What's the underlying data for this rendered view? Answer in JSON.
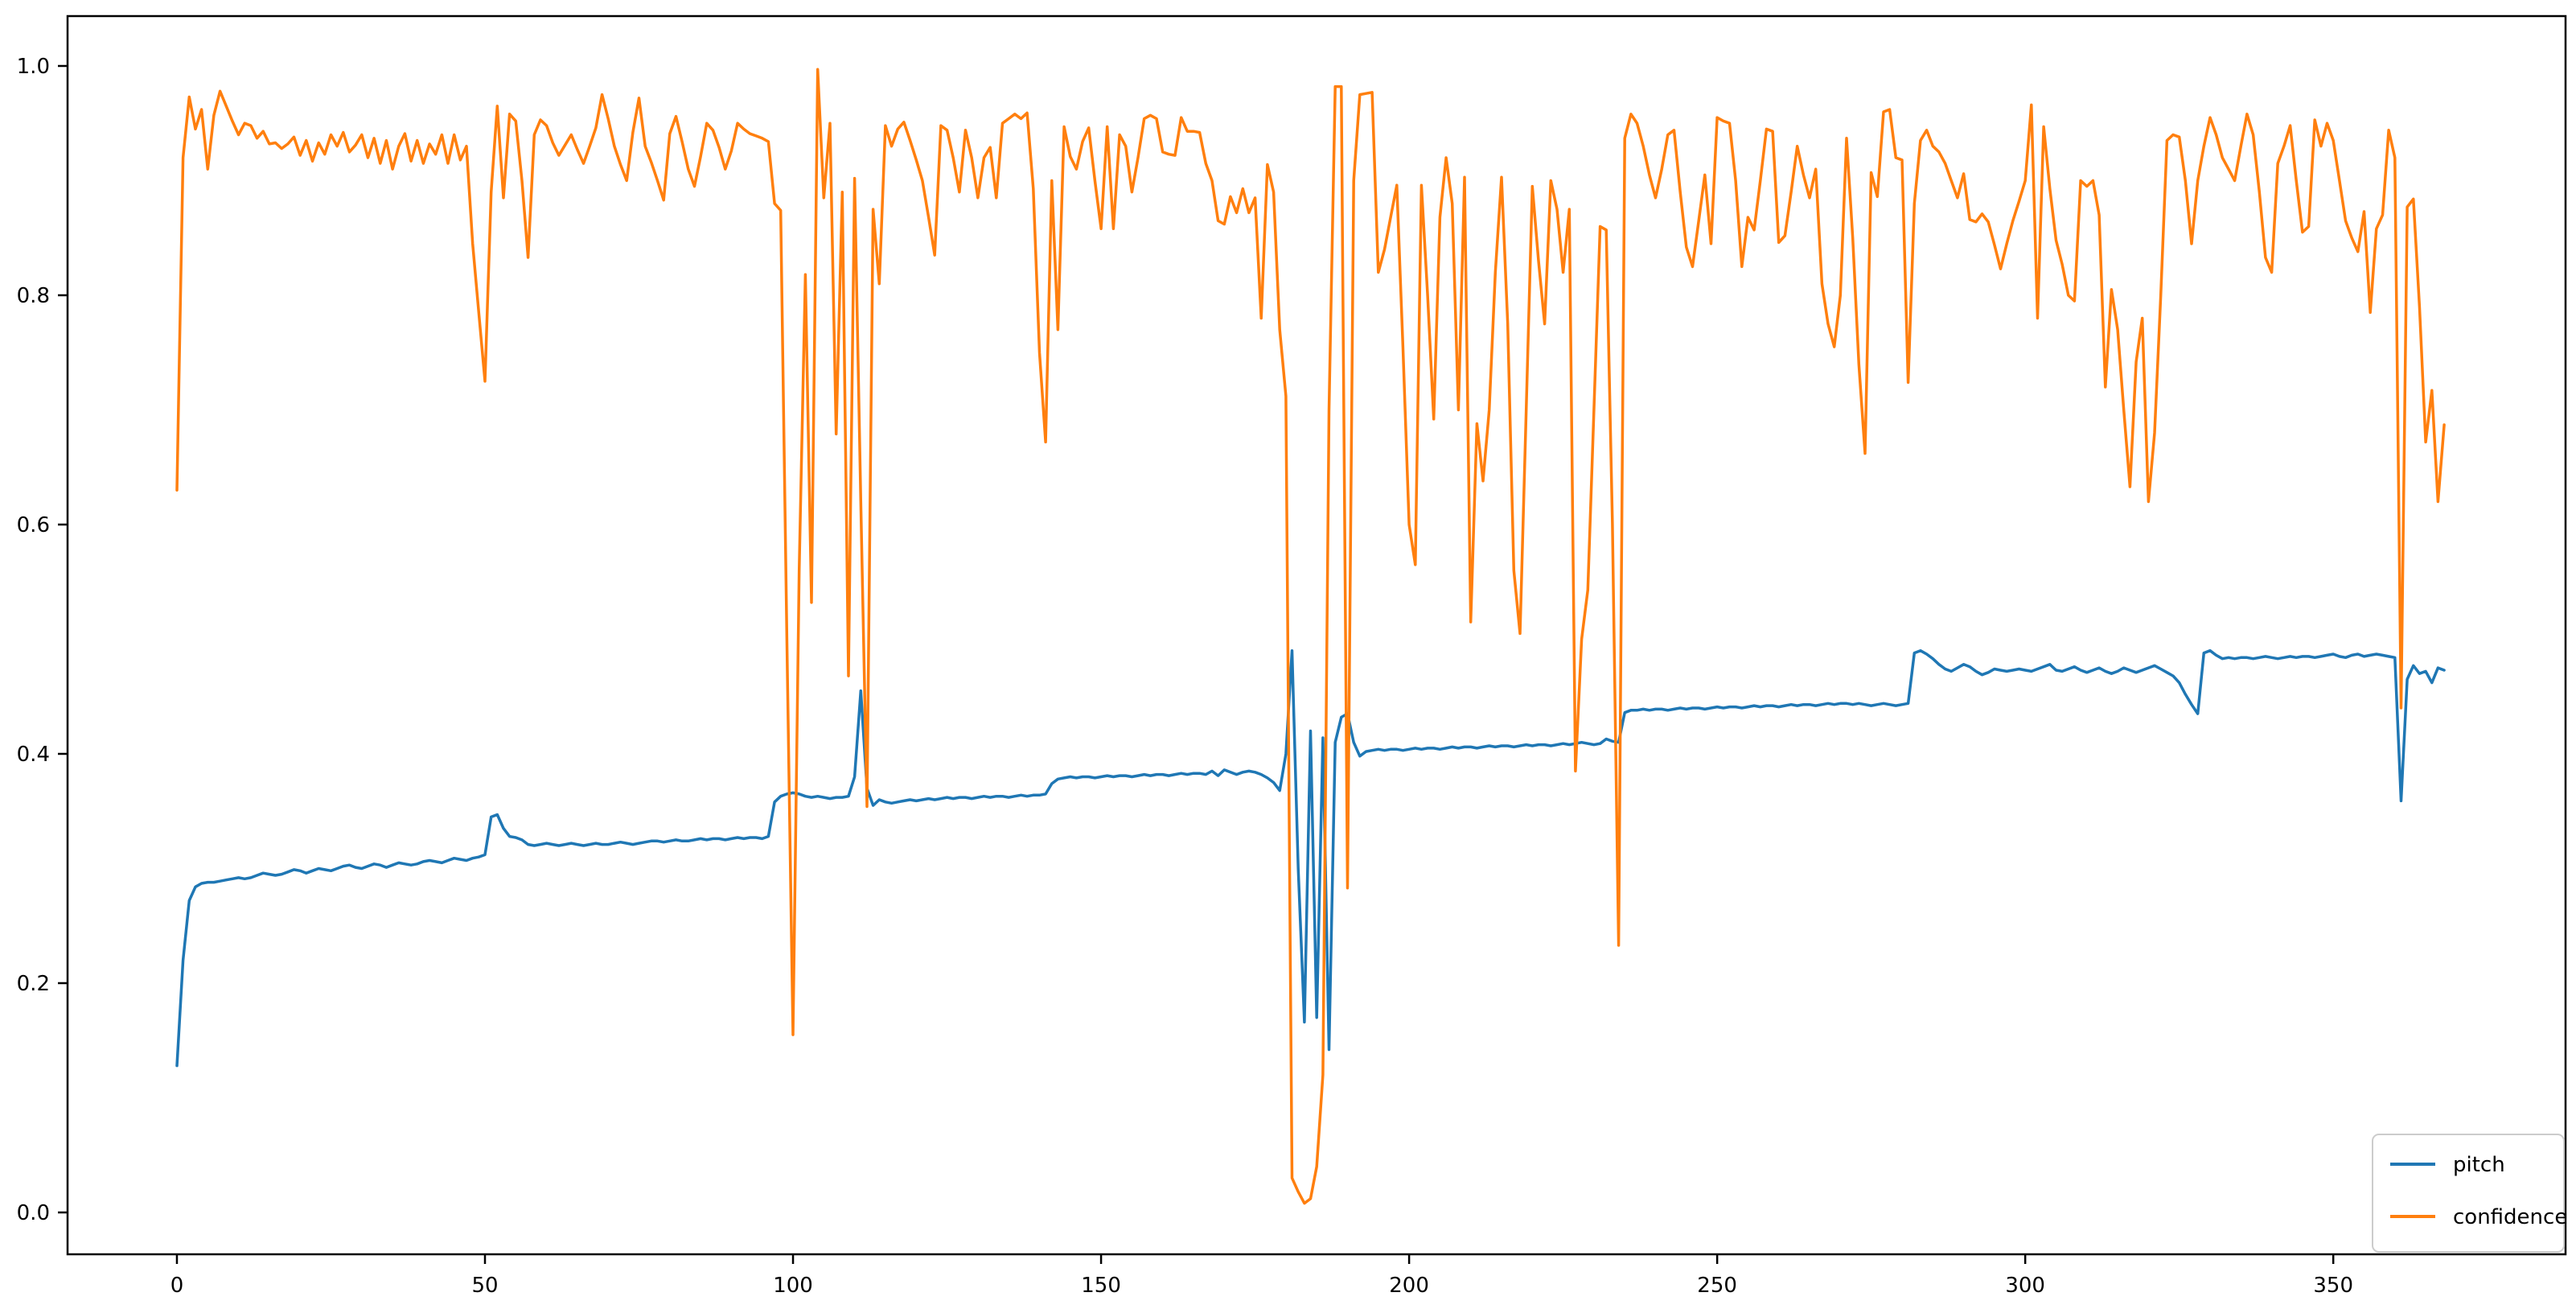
{
  "figure": {
    "background": "#ffffff",
    "frame_color": "#000000",
    "tick_color": "#000000",
    "legend_border_color": "#cccccc"
  },
  "legend": {
    "items": [
      {
        "label": "pitch",
        "color": "#1f77b4"
      },
      {
        "label": "confidence",
        "color": "#ff7f0e"
      }
    ]
  },
  "chart_data": {
    "type": "line",
    "title": "",
    "xlabel": "",
    "ylabel": "",
    "grid": false,
    "legend_position": "lower right",
    "x_start": 0,
    "x_step": 1,
    "xlim": [
      -17.75,
      387.7
    ],
    "ylim": [
      -0.0365,
      1.0435
    ],
    "xticks": [
      0,
      50,
      100,
      150,
      200,
      250,
      300,
      350
    ],
    "yticks": [
      0.0,
      0.2,
      0.4,
      0.6,
      0.8,
      1.0
    ],
    "ytick_labels": [
      "0.0",
      "0.2",
      "0.4",
      "0.6",
      "0.8",
      "1.0"
    ],
    "series": [
      {
        "name": "pitch",
        "color": "#1f77b4",
        "values": [
          0.128,
          0.22,
          0.272,
          0.284,
          0.287,
          0.288,
          0.288,
          0.289,
          0.29,
          0.291,
          0.292,
          0.291,
          0.292,
          0.294,
          0.296,
          0.295,
          0.294,
          0.295,
          0.297,
          0.299,
          0.298,
          0.296,
          0.298,
          0.3,
          0.299,
          0.298,
          0.3,
          0.302,
          0.303,
          0.301,
          0.3,
          0.302,
          0.304,
          0.303,
          0.301,
          0.303,
          0.305,
          0.304,
          0.303,
          0.304,
          0.306,
          0.307,
          0.306,
          0.305,
          0.307,
          0.309,
          0.308,
          0.307,
          0.309,
          0.31,
          0.312,
          0.345,
          0.347,
          0.335,
          0.328,
          0.327,
          0.325,
          0.321,
          0.32,
          0.321,
          0.322,
          0.321,
          0.32,
          0.321,
          0.322,
          0.321,
          0.32,
          0.321,
          0.322,
          0.321,
          0.321,
          0.322,
          0.323,
          0.322,
          0.321,
          0.322,
          0.323,
          0.324,
          0.324,
          0.323,
          0.324,
          0.325,
          0.324,
          0.324,
          0.325,
          0.326,
          0.325,
          0.326,
          0.326,
          0.325,
          0.326,
          0.327,
          0.326,
          0.327,
          0.327,
          0.326,
          0.328,
          0.358,
          0.363,
          0.365,
          0.366,
          0.365,
          0.363,
          0.362,
          0.363,
          0.362,
          0.361,
          0.362,
          0.362,
          0.363,
          0.38,
          0.455,
          0.37,
          0.355,
          0.36,
          0.358,
          0.357,
          0.358,
          0.359,
          0.36,
          0.359,
          0.36,
          0.361,
          0.36,
          0.361,
          0.362,
          0.361,
          0.362,
          0.362,
          0.361,
          0.362,
          0.363,
          0.362,
          0.363,
          0.363,
          0.362,
          0.363,
          0.364,
          0.363,
          0.364,
          0.364,
          0.365,
          0.374,
          0.378,
          0.379,
          0.38,
          0.379,
          0.38,
          0.38,
          0.379,
          0.38,
          0.381,
          0.38,
          0.381,
          0.381,
          0.38,
          0.381,
          0.382,
          0.381,
          0.382,
          0.382,
          0.381,
          0.382,
          0.383,
          0.382,
          0.383,
          0.383,
          0.382,
          0.385,
          0.381,
          0.386,
          0.384,
          0.382,
          0.384,
          0.385,
          0.384,
          0.382,
          0.379,
          0.375,
          0.368,
          0.4,
          0.49,
          0.3,
          0.166,
          0.42,
          0.17,
          0.414,
          0.142,
          0.41,
          0.432,
          0.435,
          0.41,
          0.398,
          0.402,
          0.403,
          0.404,
          0.403,
          0.404,
          0.404,
          0.403,
          0.404,
          0.405,
          0.404,
          0.405,
          0.405,
          0.404,
          0.405,
          0.406,
          0.405,
          0.406,
          0.406,
          0.405,
          0.406,
          0.407,
          0.406,
          0.407,
          0.407,
          0.406,
          0.407,
          0.408,
          0.407,
          0.408,
          0.408,
          0.407,
          0.408,
          0.409,
          0.408,
          0.409,
          0.41,
          0.409,
          0.408,
          0.409,
          0.413,
          0.411,
          0.41,
          0.436,
          0.438,
          0.438,
          0.439,
          0.438,
          0.439,
          0.439,
          0.438,
          0.439,
          0.44,
          0.439,
          0.44,
          0.44,
          0.439,
          0.44,
          0.441,
          0.44,
          0.441,
          0.441,
          0.44,
          0.441,
          0.442,
          0.441,
          0.442,
          0.442,
          0.441,
          0.442,
          0.443,
          0.442,
          0.443,
          0.443,
          0.442,
          0.443,
          0.444,
          0.443,
          0.444,
          0.444,
          0.443,
          0.444,
          0.443,
          0.442,
          0.443,
          0.444,
          0.443,
          0.442,
          0.443,
          0.444,
          0.488,
          0.49,
          0.487,
          0.483,
          0.478,
          0.474,
          0.472,
          0.475,
          0.478,
          0.476,
          0.472,
          0.469,
          0.471,
          0.474,
          0.473,
          0.472,
          0.473,
          0.474,
          0.473,
          0.472,
          0.474,
          0.476,
          0.478,
          0.473,
          0.472,
          0.474,
          0.476,
          0.473,
          0.471,
          0.473,
          0.475,
          0.472,
          0.47,
          0.472,
          0.475,
          0.473,
          0.471,
          0.473,
          0.475,
          0.477,
          0.474,
          0.471,
          0.468,
          0.462,
          0.452,
          0.443,
          0.435,
          0.488,
          0.49,
          0.486,
          0.483,
          0.484,
          0.483,
          0.484,
          0.484,
          0.483,
          0.484,
          0.485,
          0.484,
          0.483,
          0.484,
          0.485,
          0.484,
          0.485,
          0.485,
          0.484,
          0.485,
          0.486,
          0.487,
          0.485,
          0.484,
          0.486,
          0.487,
          0.485,
          0.486,
          0.487,
          0.486,
          0.485,
          0.484,
          0.359,
          0.465,
          0.477,
          0.47,
          0.472,
          0.462,
          0.475,
          0.473
        ]
      },
      {
        "name": "confidence",
        "color": "#ff7f0e",
        "values": [
          0.63,
          0.92,
          0.973,
          0.945,
          0.962,
          0.91,
          0.957,
          0.978,
          0.965,
          0.952,
          0.94,
          0.95,
          0.948,
          0.937,
          0.943,
          0.932,
          0.933,
          0.928,
          0.932,
          0.938,
          0.922,
          0.935,
          0.917,
          0.933,
          0.923,
          0.94,
          0.93,
          0.942,
          0.925,
          0.931,
          0.94,
          0.92,
          0.937,
          0.915,
          0.935,
          0.91,
          0.93,
          0.941,
          0.917,
          0.935,
          0.915,
          0.932,
          0.923,
          0.94,
          0.915,
          0.94,
          0.918,
          0.93,
          0.845,
          0.785,
          0.725,
          0.89,
          0.965,
          0.885,
          0.958,
          0.952,
          0.9,
          0.833,
          0.94,
          0.953,
          0.948,
          0.933,
          0.922,
          0.931,
          0.94,
          0.927,
          0.915,
          0.93,
          0.946,
          0.975,
          0.954,
          0.93,
          0.914,
          0.9,
          0.942,
          0.972,
          0.93,
          0.916,
          0.9,
          0.883,
          0.941,
          0.956,
          0.934,
          0.91,
          0.895,
          0.921,
          0.95,
          0.944,
          0.929,
          0.91,
          0.926,
          0.95,
          0.945,
          0.941,
          0.939,
          0.937,
          0.934,
          0.88,
          0.874,
          0.5,
          0.155,
          0.56,
          0.818,
          0.532,
          0.997,
          0.885,
          0.95,
          0.679,
          0.89,
          0.468,
          0.902,
          0.62,
          0.354,
          0.875,
          0.81,
          0.948,
          0.93,
          0.945,
          0.951,
          0.935,
          0.918,
          0.9,
          0.868,
          0.835,
          0.948,
          0.944,
          0.92,
          0.89,
          0.944,
          0.92,
          0.885,
          0.92,
          0.929,
          0.885,
          0.95,
          0.954,
          0.958,
          0.954,
          0.959,
          0.893,
          0.75,
          0.672,
          0.9,
          0.77,
          0.947,
          0.921,
          0.91,
          0.934,
          0.946,
          0.9,
          0.858,
          0.947,
          0.858,
          0.94,
          0.93,
          0.89,
          0.92,
          0.954,
          0.957,
          0.954,
          0.925,
          0.923,
          0.922,
          0.955,
          0.943,
          0.943,
          0.942,
          0.915,
          0.9,
          0.865,
          0.862,
          0.886,
          0.872,
          0.893,
          0.872,
          0.885,
          0.78,
          0.914,
          0.89,
          0.77,
          0.712,
          0.03,
          0.018,
          0.008,
          0.012,
          0.04,
          0.12,
          0.7,
          0.982,
          0.982,
          0.283,
          0.9,
          0.975,
          0.976,
          0.977,
          0.82,
          0.84,
          0.868,
          0.896,
          0.755,
          0.6,
          0.565,
          0.896,
          0.8,
          0.692,
          0.868,
          0.92,
          0.88,
          0.7,
          0.903,
          0.515,
          0.688,
          0.638,
          0.7,
          0.82,
          0.903,
          0.775,
          0.56,
          0.505,
          0.7,
          0.895,
          0.83,
          0.775,
          0.9,
          0.875,
          0.82,
          0.875,
          0.385,
          0.5,
          0.543,
          0.7,
          0.86,
          0.857,
          0.6,
          0.233,
          0.937,
          0.958,
          0.95,
          0.93,
          0.905,
          0.885,
          0.91,
          0.94,
          0.944,
          0.89,
          0.842,
          0.825,
          0.865,
          0.905,
          0.845,
          0.955,
          0.952,
          0.95,
          0.9,
          0.825,
          0.868,
          0.857,
          0.9,
          0.945,
          0.943,
          0.846,
          0.852,
          0.89,
          0.93,
          0.905,
          0.885,
          0.91,
          0.81,
          0.775,
          0.755,
          0.8,
          0.937,
          0.85,
          0.74,
          0.662,
          0.907,
          0.886,
          0.96,
          0.962,
          0.92,
          0.918,
          0.724,
          0.88,
          0.935,
          0.944,
          0.93,
          0.925,
          0.915,
          0.9,
          0.885,
          0.906,
          0.866,
          0.864,
          0.871,
          0.864,
          0.844,
          0.823,
          0.845,
          0.865,
          0.882,
          0.9,
          0.966,
          0.78,
          0.947,
          0.893,
          0.848,
          0.827,
          0.8,
          0.795,
          0.9,
          0.895,
          0.9,
          0.87,
          0.72,
          0.805,
          0.77,
          0.7,
          0.633,
          0.742,
          0.78,
          0.62,
          0.68,
          0.8,
          0.935,
          0.94,
          0.938,
          0.9,
          0.845,
          0.9,
          0.93,
          0.955,
          0.94,
          0.92,
          0.91,
          0.9,
          0.93,
          0.958,
          0.94,
          0.89,
          0.833,
          0.82,
          0.915,
          0.93,
          0.948,
          0.9,
          0.855,
          0.86,
          0.953,
          0.93,
          0.95,
          0.935,
          0.9,
          0.865,
          0.85,
          0.838,
          0.873,
          0.785,
          0.858,
          0.87,
          0.944,
          0.92,
          0.44,
          0.877,
          0.884,
          0.79,
          0.672,
          0.717,
          0.62,
          0.687
        ]
      }
    ]
  }
}
